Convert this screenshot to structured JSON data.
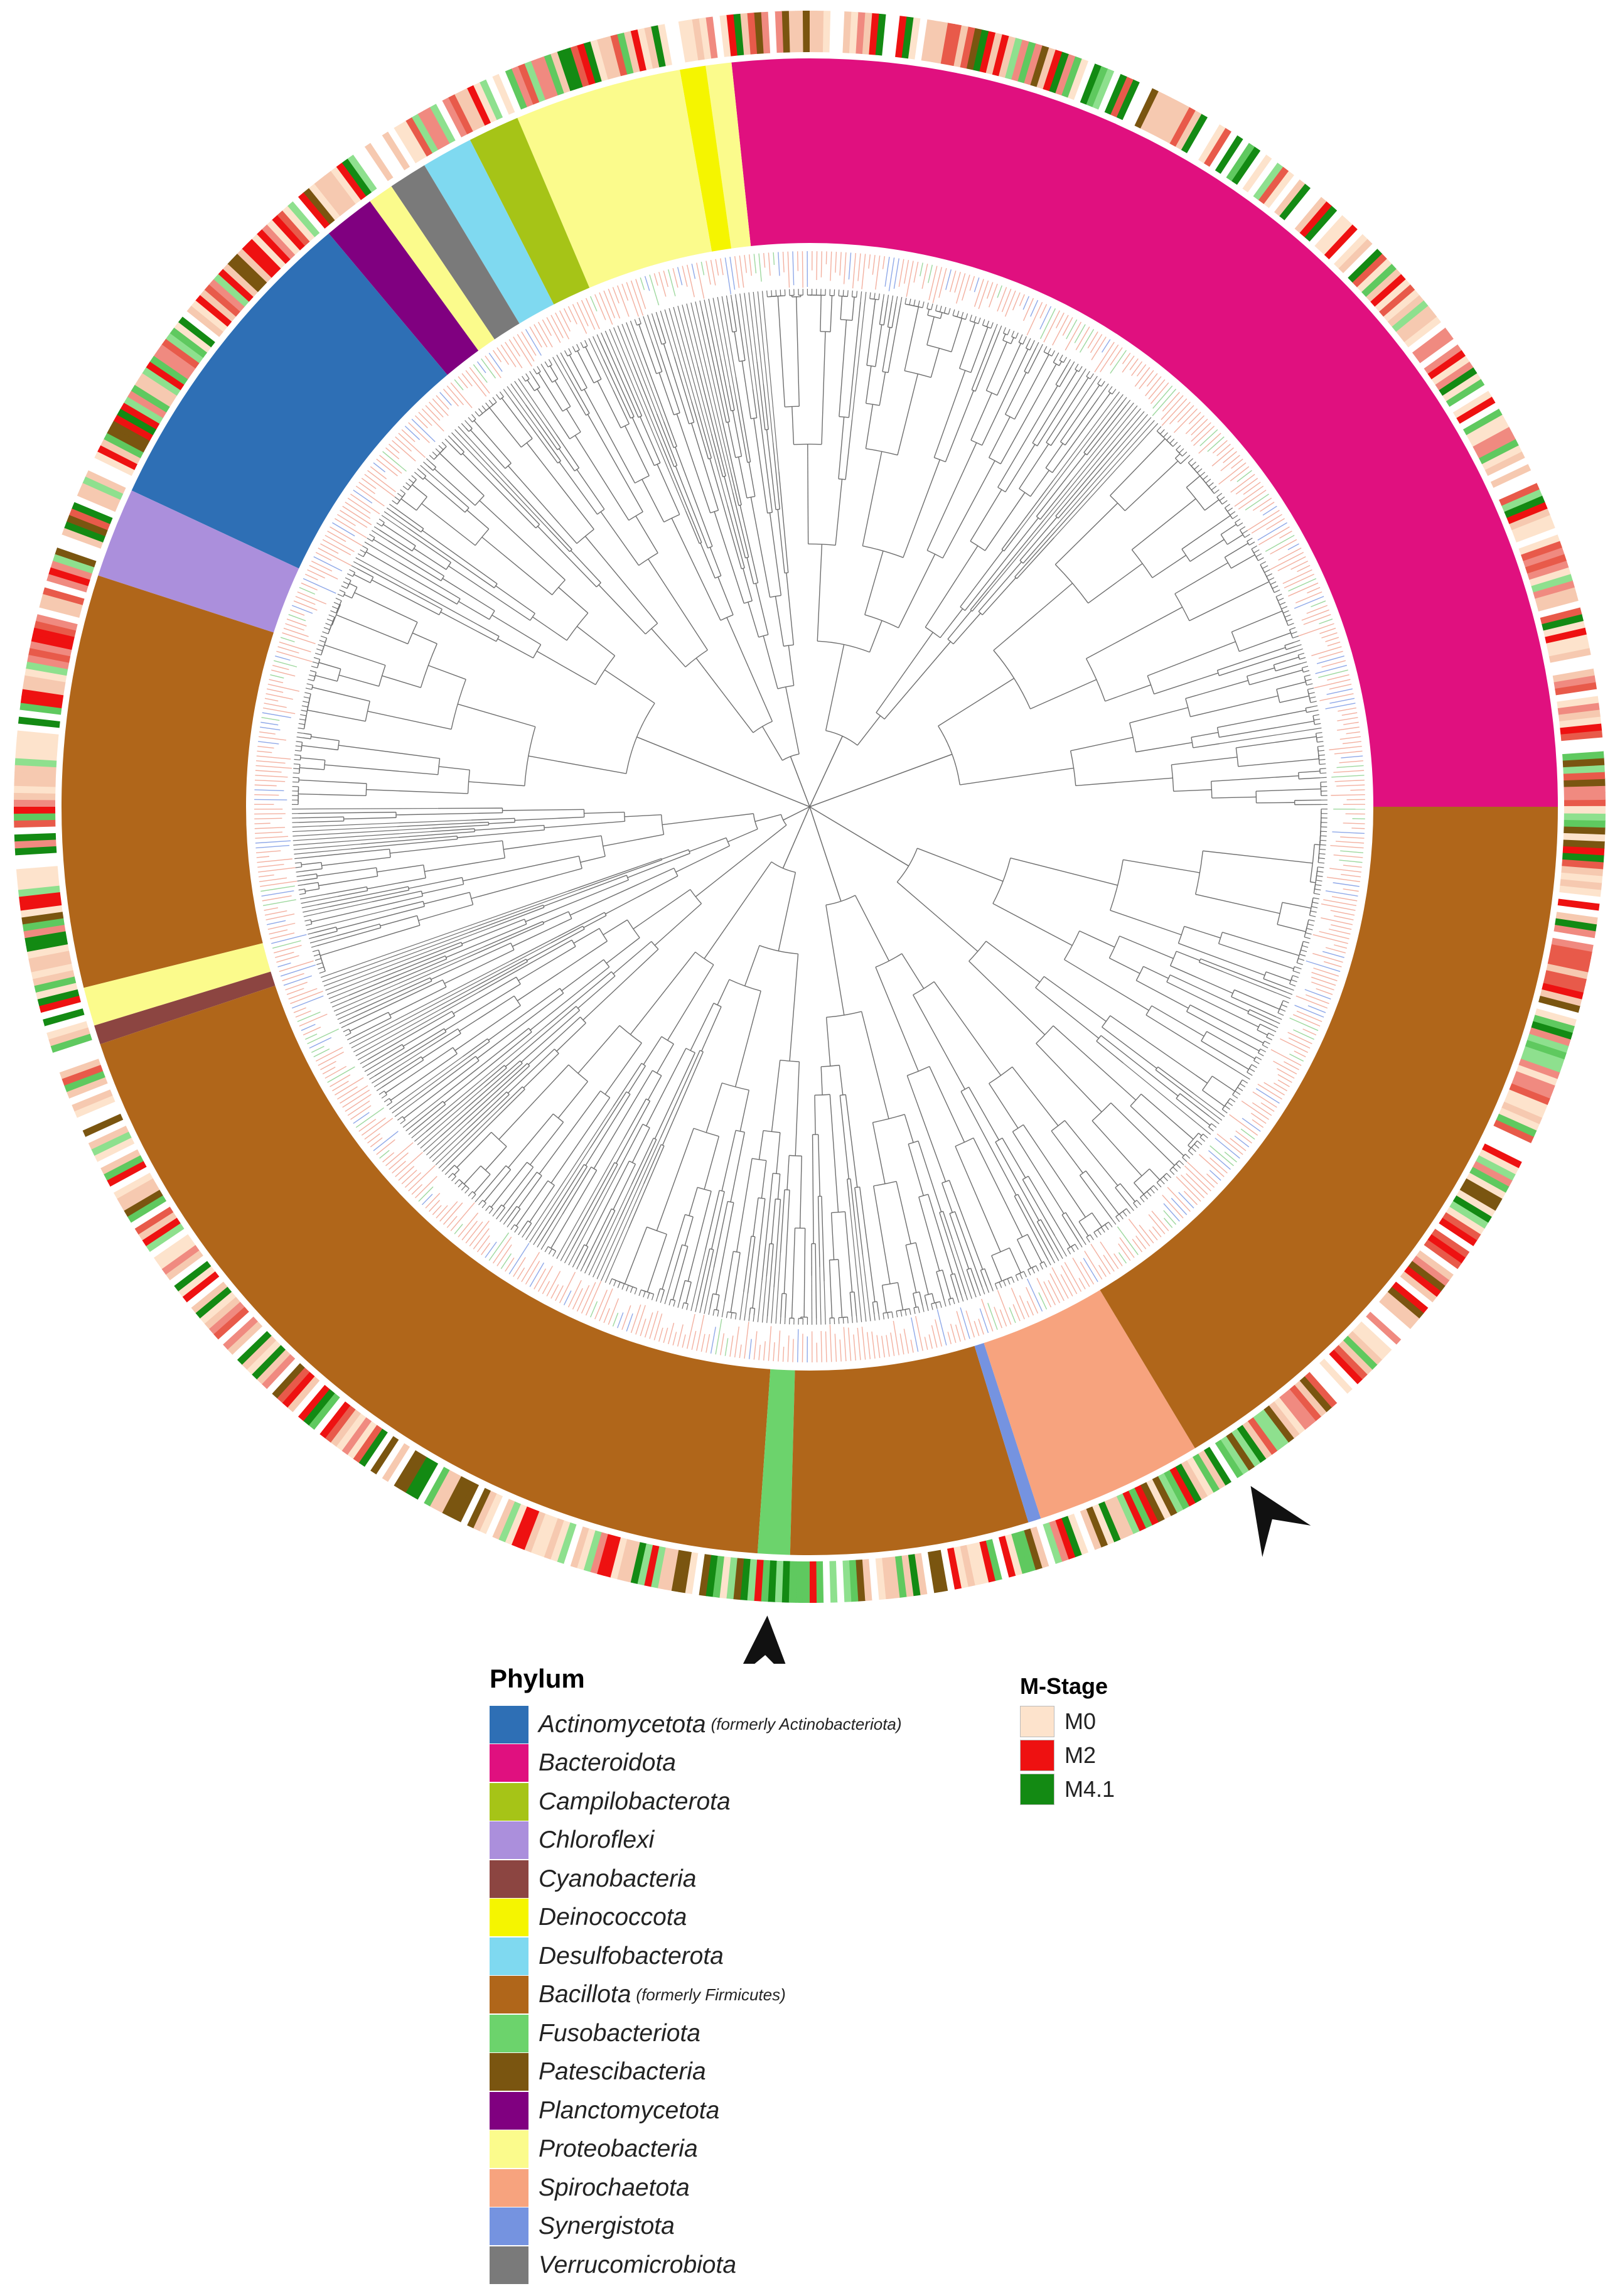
{
  "figure": {
    "type": "circular-phylogenetic-tree",
    "tip_count": 720,
    "arrowhead_count": 2
  },
  "phylum_legend": {
    "title": "Phylum",
    "items": [
      {
        "name": "Actinomycetota",
        "note": "(formerly Actinobacteriota)",
        "color": "#2e6fb5"
      },
      {
        "name": "Bacteroidota",
        "note": "",
        "color": "#e0107f"
      },
      {
        "name": "Campilobacterota",
        "note": "",
        "color": "#a6c417"
      },
      {
        "name": "Chloroflexi",
        "note": "",
        "color": "#ab8fdc"
      },
      {
        "name": "Cyanobacteria",
        "note": "",
        "color": "#8c4541"
      },
      {
        "name": "Deinococcota",
        "note": "",
        "color": "#f5f500"
      },
      {
        "name": "Desulfobacterota",
        "note": "",
        "color": "#7fd9f0"
      },
      {
        "name": "Bacillota",
        "note": "(formerly Firmicutes)",
        "color": "#b0661a"
      },
      {
        "name": "Fusobacteriota",
        "note": "",
        "color": "#6cd36c"
      },
      {
        "name": "Patescibacteria",
        "note": "",
        "color": "#7a5510"
      },
      {
        "name": "Planctomycetota",
        "note": "",
        "color": "#800080"
      },
      {
        "name": "Proteobacteria",
        "note": "",
        "color": "#fbfb8c"
      },
      {
        "name": "Spirochaetota",
        "note": "",
        "color": "#f7a37e"
      },
      {
        "name": "Synergistota",
        "note": "",
        "color": "#7593e0"
      },
      {
        "name": "Verrucomicrobiota",
        "note": "",
        "color": "#7a7a7a"
      }
    ]
  },
  "mstage_legend": {
    "title": "M-Stage",
    "items": [
      {
        "name": "M0",
        "color": "#fde3cc"
      },
      {
        "name": "M2",
        "color": "#ee1111"
      },
      {
        "name": "M4.1",
        "color": "#138a13"
      }
    ]
  },
  "phylum_ring": [
    {
      "phylum": "Bacteroidota",
      "start_deg": 0,
      "end_deg": 96
    },
    {
      "phylum": "Proteobacteria",
      "start_deg": 96,
      "end_deg": 98
    },
    {
      "phylum": "Deinococcota",
      "start_deg": 98,
      "end_deg": 100
    },
    {
      "phylum": "Proteobacteria",
      "start_deg": 100,
      "end_deg": 113
    },
    {
      "phylum": "Campilobacterota",
      "start_deg": 113,
      "end_deg": 117
    },
    {
      "phylum": "Desulfobacterota",
      "start_deg": 117,
      "end_deg": 121
    },
    {
      "phylum": "Verrucomicrobiota",
      "start_deg": 121,
      "end_deg": 124
    },
    {
      "phylum": "Proteobacteria",
      "start_deg": 124,
      "end_deg": 126
    },
    {
      "phylum": "Planctomycetota",
      "start_deg": 126,
      "end_deg": 130
    },
    {
      "phylum": "Actinomycetota",
      "start_deg": 130,
      "end_deg": 155
    },
    {
      "phylum": "Chloroflexi",
      "start_deg": 155,
      "end_deg": 162
    },
    {
      "phylum": "Bacillota",
      "start_deg": 162,
      "end_deg": 194
    },
    {
      "phylum": "Proteobacteria",
      "start_deg": 194,
      "end_deg": 197
    },
    {
      "phylum": "Cyanobacteria",
      "start_deg": 197,
      "end_deg": 198.5
    },
    {
      "phylum": "Bacillota",
      "start_deg": 198.5,
      "end_deg": 266
    },
    {
      "phylum": "Fusobacteriota",
      "start_deg": 266,
      "end_deg": 268.5
    },
    {
      "phylum": "Bacillota",
      "start_deg": 268.5,
      "end_deg": 287
    },
    {
      "phylum": "Synergistota",
      "start_deg": 287,
      "end_deg": 288
    },
    {
      "phylum": "Spirochaetota",
      "start_deg": 288,
      "end_deg": 301
    },
    {
      "phylum": "Bacillota",
      "start_deg": 301,
      "end_deg": 360
    }
  ],
  "arrowheads": [
    {
      "points_to": "outer ring M4.1 cluster near Fusobacteriota",
      "angle_deg": 267
    },
    {
      "points_to": "outer ring M4.1 cluster near Spirochaetota",
      "angle_deg": 303
    }
  ]
}
